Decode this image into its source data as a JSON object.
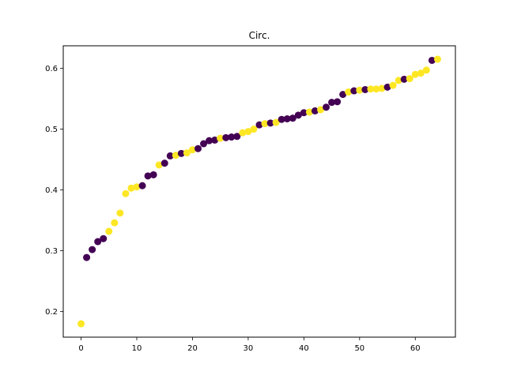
{
  "chart_data": {
    "type": "scatter",
    "title": "Circ.",
    "xlabel": "",
    "ylabel": "",
    "xlim": [
      -3.2,
      67.2
    ],
    "ylim": [
      0.158,
      0.637
    ],
    "xticks": [
      0,
      10,
      20,
      30,
      40,
      50,
      60
    ],
    "yticks": [
      0.2,
      0.3,
      0.4,
      0.5,
      0.6
    ],
    "grid": false,
    "colors": {
      "yellow": "#fde725",
      "purple": "#440154"
    },
    "points": [
      {
        "x": 0,
        "y": 0.18,
        "c": "yellow"
      },
      {
        "x": 1,
        "y": 0.289,
        "c": "purple"
      },
      {
        "x": 2,
        "y": 0.302,
        "c": "purple"
      },
      {
        "x": 3,
        "y": 0.315,
        "c": "purple"
      },
      {
        "x": 4,
        "y": 0.32,
        "c": "purple"
      },
      {
        "x": 5,
        "y": 0.332,
        "c": "yellow"
      },
      {
        "x": 6,
        "y": 0.346,
        "c": "yellow"
      },
      {
        "x": 7,
        "y": 0.362,
        "c": "yellow"
      },
      {
        "x": 8,
        "y": 0.394,
        "c": "yellow"
      },
      {
        "x": 9,
        "y": 0.403,
        "c": "yellow"
      },
      {
        "x": 10,
        "y": 0.405,
        "c": "yellow"
      },
      {
        "x": 11,
        "y": 0.407,
        "c": "purple"
      },
      {
        "x": 12,
        "y": 0.423,
        "c": "purple"
      },
      {
        "x": 13,
        "y": 0.425,
        "c": "purple"
      },
      {
        "x": 14,
        "y": 0.441,
        "c": "yellow"
      },
      {
        "x": 15,
        "y": 0.444,
        "c": "purple"
      },
      {
        "x": 16,
        "y": 0.456,
        "c": "purple"
      },
      {
        "x": 17,
        "y": 0.457,
        "c": "yellow"
      },
      {
        "x": 18,
        "y": 0.46,
        "c": "purple"
      },
      {
        "x": 19,
        "y": 0.461,
        "c": "yellow"
      },
      {
        "x": 20,
        "y": 0.466,
        "c": "yellow"
      },
      {
        "x": 21,
        "y": 0.468,
        "c": "purple"
      },
      {
        "x": 22,
        "y": 0.476,
        "c": "purple"
      },
      {
        "x": 23,
        "y": 0.481,
        "c": "purple"
      },
      {
        "x": 24,
        "y": 0.482,
        "c": "purple"
      },
      {
        "x": 25,
        "y": 0.485,
        "c": "yellow"
      },
      {
        "x": 26,
        "y": 0.486,
        "c": "purple"
      },
      {
        "x": 27,
        "y": 0.487,
        "c": "purple"
      },
      {
        "x": 28,
        "y": 0.488,
        "c": "purple"
      },
      {
        "x": 29,
        "y": 0.494,
        "c": "yellow"
      },
      {
        "x": 30,
        "y": 0.496,
        "c": "yellow"
      },
      {
        "x": 31,
        "y": 0.5,
        "c": "yellow"
      },
      {
        "x": 32,
        "y": 0.507,
        "c": "purple"
      },
      {
        "x": 33,
        "y": 0.509,
        "c": "yellow"
      },
      {
        "x": 34,
        "y": 0.51,
        "c": "purple"
      },
      {
        "x": 35,
        "y": 0.511,
        "c": "yellow"
      },
      {
        "x": 36,
        "y": 0.516,
        "c": "purple"
      },
      {
        "x": 37,
        "y": 0.517,
        "c": "purple"
      },
      {
        "x": 38,
        "y": 0.518,
        "c": "purple"
      },
      {
        "x": 39,
        "y": 0.523,
        "c": "purple"
      },
      {
        "x": 40,
        "y": 0.527,
        "c": "purple"
      },
      {
        "x": 41,
        "y": 0.528,
        "c": "yellow"
      },
      {
        "x": 42,
        "y": 0.53,
        "c": "purple"
      },
      {
        "x": 43,
        "y": 0.532,
        "c": "yellow"
      },
      {
        "x": 44,
        "y": 0.536,
        "c": "purple"
      },
      {
        "x": 45,
        "y": 0.544,
        "c": "purple"
      },
      {
        "x": 46,
        "y": 0.545,
        "c": "purple"
      },
      {
        "x": 47,
        "y": 0.557,
        "c": "purple"
      },
      {
        "x": 48,
        "y": 0.561,
        "c": "yellow"
      },
      {
        "x": 49,
        "y": 0.563,
        "c": "purple"
      },
      {
        "x": 50,
        "y": 0.564,
        "c": "yellow"
      },
      {
        "x": 51,
        "y": 0.565,
        "c": "purple"
      },
      {
        "x": 52,
        "y": 0.566,
        "c": "yellow"
      },
      {
        "x": 53,
        "y": 0.566,
        "c": "yellow"
      },
      {
        "x": 54,
        "y": 0.567,
        "c": "yellow"
      },
      {
        "x": 55,
        "y": 0.569,
        "c": "purple"
      },
      {
        "x": 56,
        "y": 0.572,
        "c": "yellow"
      },
      {
        "x": 57,
        "y": 0.58,
        "c": "yellow"
      },
      {
        "x": 58,
        "y": 0.582,
        "c": "purple"
      },
      {
        "x": 59,
        "y": 0.583,
        "c": "yellow"
      },
      {
        "x": 60,
        "y": 0.59,
        "c": "yellow"
      },
      {
        "x": 61,
        "y": 0.592,
        "c": "yellow"
      },
      {
        "x": 62,
        "y": 0.597,
        "c": "yellow"
      },
      {
        "x": 63,
        "y": 0.613,
        "c": "purple"
      },
      {
        "x": 64,
        "y": 0.615,
        "c": "yellow"
      }
    ]
  }
}
